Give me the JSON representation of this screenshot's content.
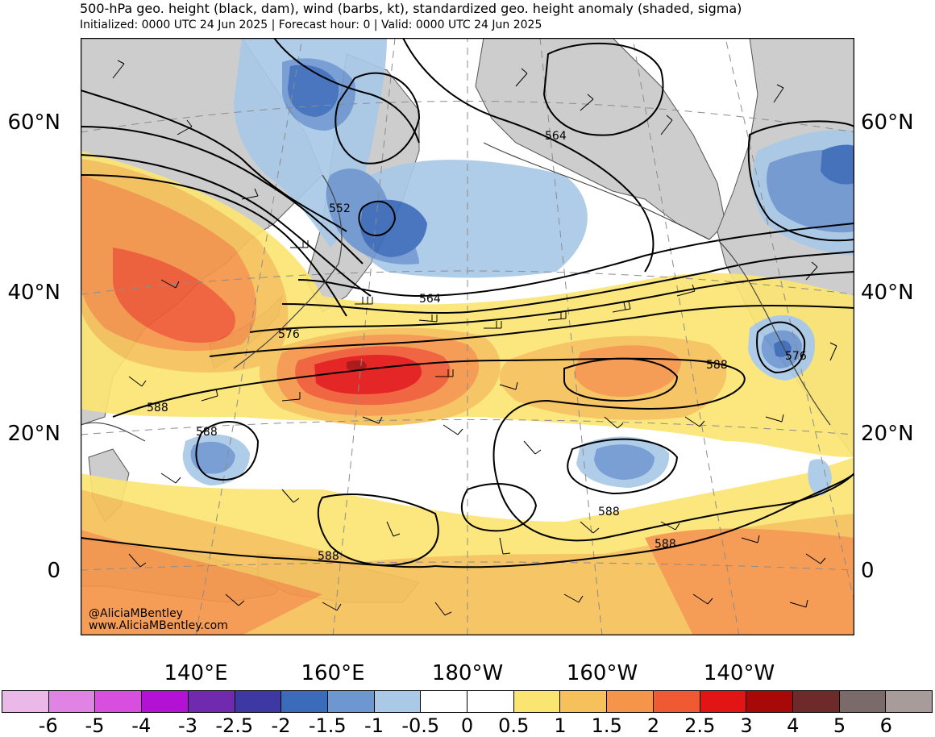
{
  "title": "500-hPa geo. height (black, dam), wind (barbs, kt), standardized geo. height anomaly (shaded, sigma)",
  "subtitle": "Initialized: 0000 UTC 24 Jun 2025 | Forecast hour: 0 | Valid: 0000 UTC 24 Jun 2025",
  "lat_labels": [
    "60°N",
    "40°N",
    "20°N",
    "0"
  ],
  "lon_labels": [
    "140°E",
    "160°E",
    "180°W",
    "160°W",
    "140°W"
  ],
  "contour_labels": [
    "564",
    "552",
    "564",
    "576",
    "588",
    "588",
    "588",
    "588",
    "588",
    "588",
    "576"
  ],
  "watermark": [
    "@AliciaMBentley",
    "www.AliciaMBentley.com"
  ],
  "colorbar": {
    "colors": [
      "#eab9e8",
      "#e183e5",
      "#d84ede",
      "#b312d4",
      "#6f2ab0",
      "#3d38a3",
      "#3b6bbb",
      "#6e97d2",
      "#a9c9e7",
      "#ffffff",
      "#ffffff",
      "#fbe572",
      "#f6c15a",
      "#f59549",
      "#f05a32",
      "#e21414",
      "#a70808",
      "#6e2a2a",
      "#7a6b6a",
      "#a89c9a"
    ],
    "labels": [
      "-6",
      "-5",
      "-4",
      "-3",
      "-2.5",
      "-2",
      "-1.5",
      "-1",
      "-0.5",
      "0",
      "0.5",
      "1",
      "1.5",
      "2",
      "2.5",
      "3",
      "4",
      "5",
      "6"
    ]
  },
  "colors": {
    "land": "#cdcdcd",
    "contour": "#000000",
    "graticule": "#8c8c8c",
    "coast": "#555555"
  }
}
